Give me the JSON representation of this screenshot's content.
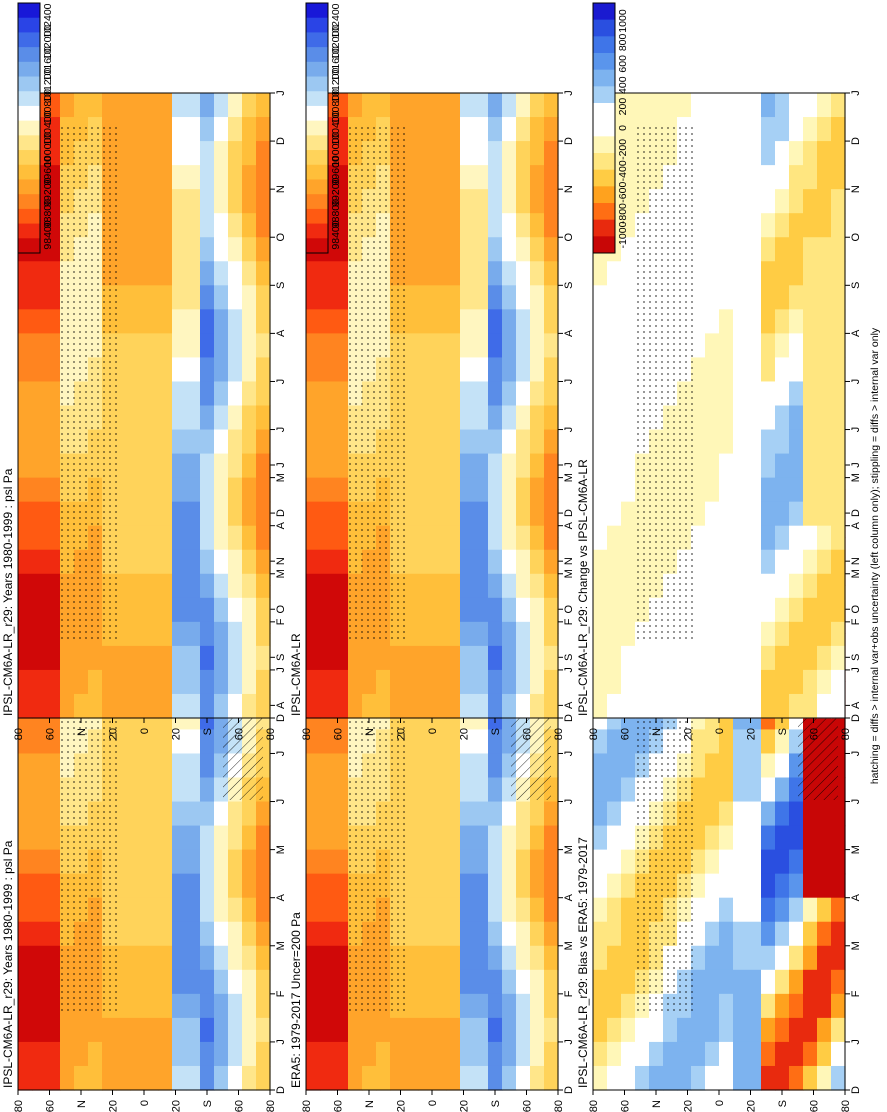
{
  "figure": {
    "footnote": "hatching = diffs > internal var+obs uncertainty (left column only); stippling = diffs > internal var only"
  },
  "colormaps": {
    "psl": [
      "#1818d8",
      "#2a44e6",
      "#3f6be8",
      "#5a8de8",
      "#78abec",
      "#9cc8f2",
      "#c4e2f7",
      "#ffffff",
      "#fff6c0",
      "#ffe68a",
      "#ffd35a",
      "#ffbf3a",
      "#ffa42a",
      "#ff8420",
      "#ff5a12",
      "#f02a10",
      "#d00808"
    ],
    "diff": [
      "#1a1ad0",
      "#2a4fe0",
      "#3f75e8",
      "#5a95ec",
      "#7db3ef",
      "#a6d0f5",
      "#ffffff",
      "#ffffff",
      "#fff7b8",
      "#ffe680",
      "#ffcc44",
      "#ffa21e",
      "#ff6e14",
      "#e82a0e",
      "#c80606"
    ]
  },
  "chart_data": [
    {
      "id": "model-climatology",
      "type": "heatmap",
      "title": "IPSL-CM6A-LR_r29: Years 1980-1999 : psl Pa",
      "variable": "psl",
      "units": "Pa",
      "x_ticks": [
        "D",
        "J",
        "F",
        "M",
        "A",
        "M",
        "J",
        "J",
        "A",
        "S",
        "O",
        "N",
        "D",
        "J"
      ],
      "y_ticks": [
        "80",
        "60",
        "N",
        "20",
        "0",
        "20",
        "S",
        "60",
        "80"
      ],
      "colorbar_labels": [
        "102400",
        "102000",
        "101600",
        "101200",
        "100800",
        "100400",
        "100000",
        "99600",
        "99200",
        "98800",
        "98400"
      ],
      "hatching": true,
      "stippling": true
    },
    {
      "id": "model-climatology-2",
      "type": "heatmap",
      "title": "IPSL-CM6A-LR_r29: Years 1980-1999 : psl Pa",
      "variable": "psl",
      "units": "Pa",
      "x_ticks": [
        "D",
        "J",
        "F",
        "M",
        "A",
        "M",
        "J",
        "J",
        "A",
        "S",
        "O",
        "N",
        "D",
        "J"
      ],
      "y_ticks": [
        "80",
        "60",
        "N",
        "20",
        "0",
        "20",
        "S",
        "60",
        "80"
      ],
      "colorbar_labels": [
        "102400",
        "102000",
        "101600",
        "101200",
        "100800",
        "100400",
        "100000",
        "99600",
        "99200",
        "98800",
        "98400"
      ],
      "hatching": false,
      "stippling": true
    },
    {
      "id": "era5-reference",
      "type": "heatmap",
      "title": "ERA5: 1979-2017 Uncer=200 Pa",
      "variable": "psl",
      "units": "Pa",
      "x_ticks": [
        "D",
        "J",
        "F",
        "M",
        "A",
        "M",
        "J",
        "J",
        "A",
        "S",
        "O",
        "N",
        "D",
        "J"
      ],
      "y_ticks": [
        "80",
        "60",
        "N",
        "20",
        "0",
        "20",
        "S",
        "60",
        "80"
      ],
      "colorbar_labels": [
        "102400",
        "102000",
        "101600",
        "101200",
        "100800",
        "100400",
        "100000",
        "99600",
        "99200",
        "98800",
        "98400"
      ],
      "hatching": true,
      "stippling": true
    },
    {
      "id": "model-reference",
      "type": "heatmap",
      "title": "IPSL-CM6A-LR",
      "variable": "psl",
      "units": "Pa",
      "x_ticks": [
        "D",
        "J",
        "F",
        "M",
        "A",
        "M",
        "J",
        "J",
        "A",
        "S",
        "O",
        "N",
        "D",
        "J"
      ],
      "y_ticks": [
        "80",
        "60",
        "N",
        "20",
        "0",
        "20",
        "S",
        "60",
        "80"
      ],
      "colorbar_labels": [
        "102400",
        "102000",
        "101600",
        "101200",
        "100800",
        "100400",
        "100000",
        "99600",
        "99200",
        "98800",
        "98400"
      ],
      "hatching": false,
      "stippling": true
    },
    {
      "id": "bias-vs-era5",
      "type": "heatmap",
      "title": "IPSL-CM6A-LR_r29: Bias vs ERA5: 1979-2017",
      "variable": "psl",
      "units": "Pa",
      "x_ticks": [
        "D",
        "J",
        "F",
        "M",
        "A",
        "M",
        "J",
        "J",
        "A",
        "S",
        "O",
        "N",
        "D",
        "J"
      ],
      "y_ticks": [
        "80",
        "60",
        "N",
        "20",
        "0",
        "20",
        "S",
        "60",
        "80"
      ],
      "colorbar_labels": [
        "1000",
        "800",
        "600",
        "400",
        "200",
        "0",
        "-200",
        "-400",
        "-600",
        "-800",
        "-1000"
      ],
      "hatching": true,
      "stippling": true
    },
    {
      "id": "change-vs-model",
      "type": "heatmap",
      "title": "IPSL-CM6A-LR_r29: Change vs IPSL-CM6A-LR",
      "variable": "psl",
      "units": "Pa",
      "x_ticks": [
        "D",
        "J",
        "F",
        "M",
        "A",
        "M",
        "J",
        "J",
        "A",
        "S",
        "O",
        "N",
        "D",
        "J"
      ],
      "y_ticks": [
        "80",
        "60",
        "N",
        "20",
        "0",
        "20",
        "S",
        "60",
        "80"
      ],
      "colorbar_labels": [
        "1000",
        "800",
        "600",
        "400",
        "200",
        "0",
        "-200",
        "-400",
        "-600",
        "-800",
        "-1000"
      ],
      "hatching": false,
      "stippling": true
    }
  ]
}
